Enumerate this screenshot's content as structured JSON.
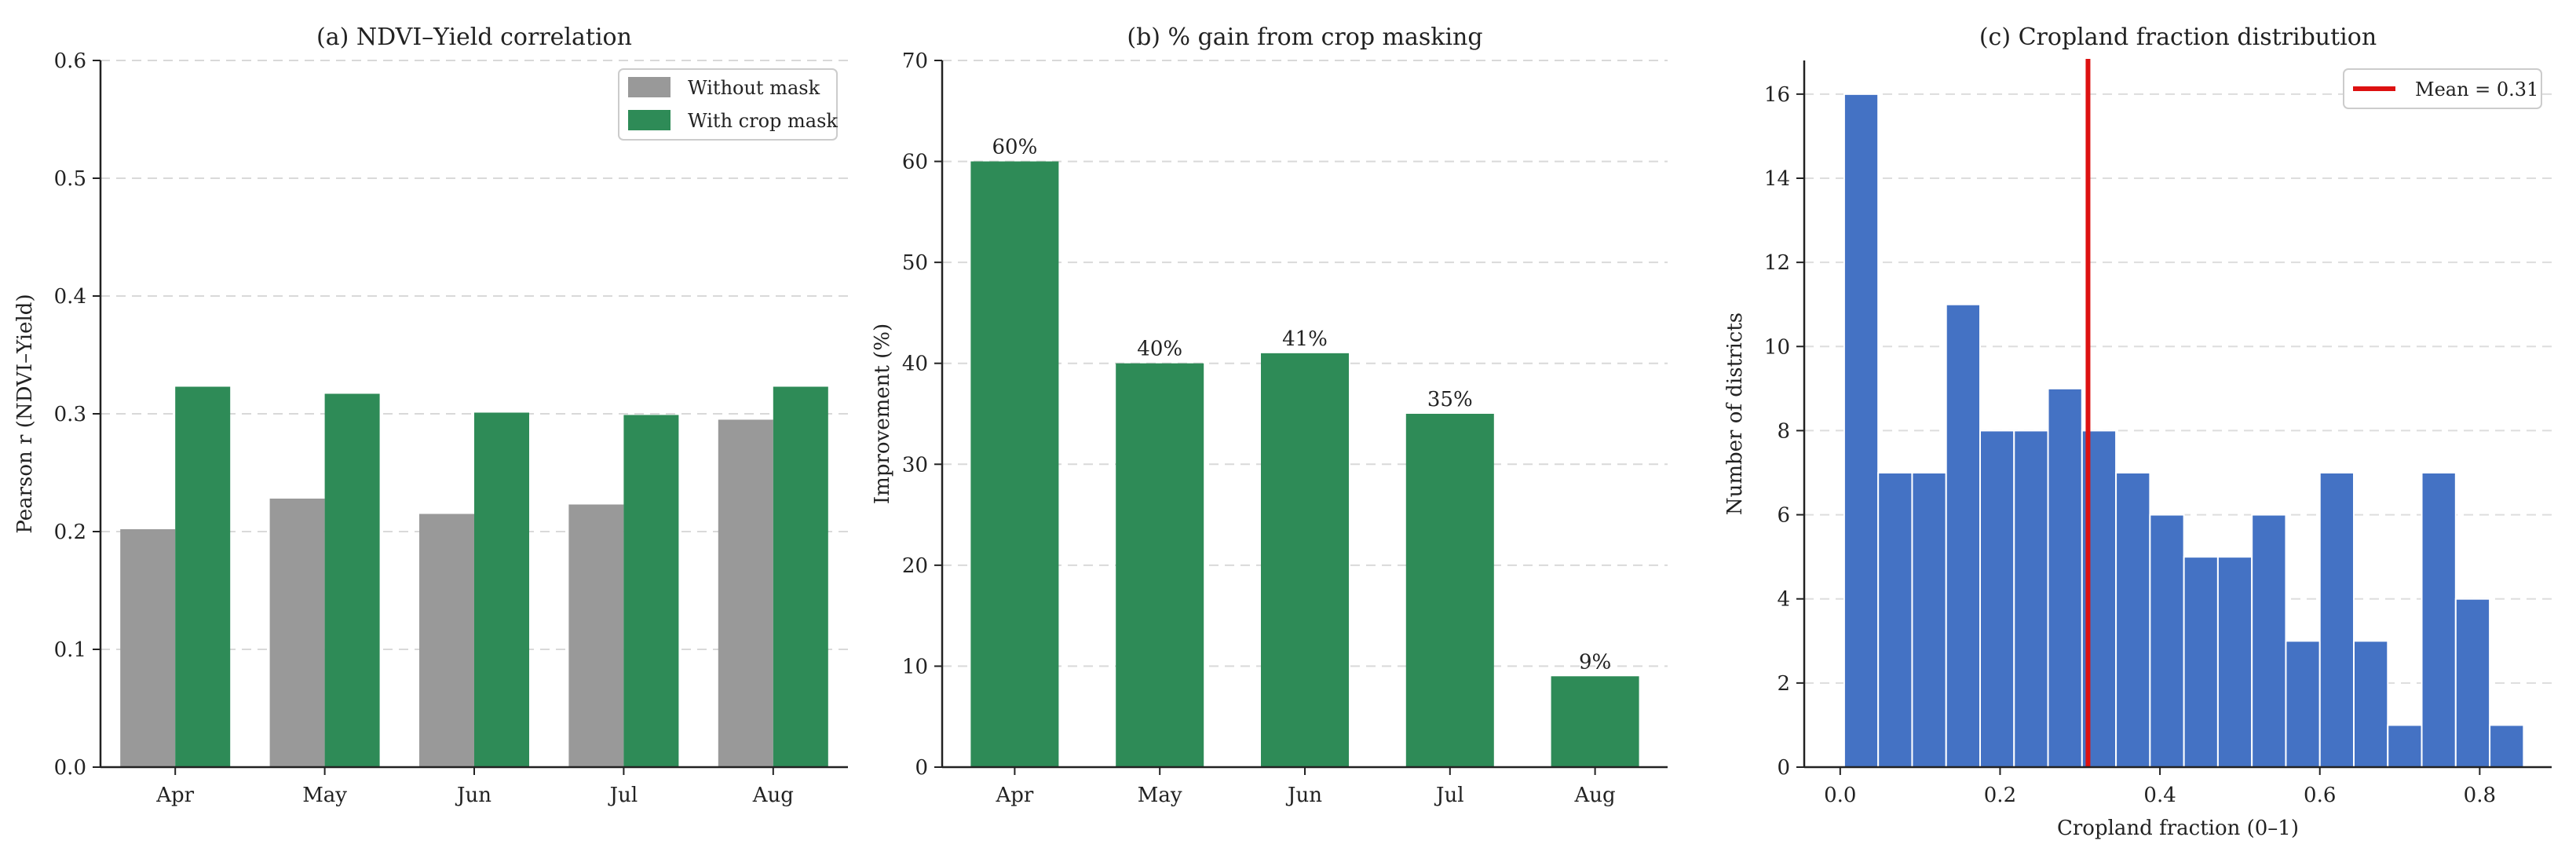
{
  "chart_data": [
    {
      "type": "bar",
      "title": "(a) NDVI–Yield correlation",
      "xlabel": "",
      "ylabel": "Pearson r (NDVI–Yield)",
      "categories": [
        "Apr",
        "May",
        "Jun",
        "Jul",
        "Aug"
      ],
      "series": [
        {
          "name": "Without mask",
          "values": [
            0.202,
            0.228,
            0.215,
            0.223,
            0.295
          ],
          "color": "#999999"
        },
        {
          "name": "With crop mask",
          "values": [
            0.323,
            0.317,
            0.301,
            0.299,
            0.323
          ],
          "color": "#2e8b57"
        }
      ],
      "ylim": [
        0,
        0.6
      ],
      "yticks": [
        0.0,
        0.1,
        0.2,
        0.3,
        0.4,
        0.5,
        0.6
      ],
      "ytick_labels": [
        "0.0",
        "0.1",
        "0.2",
        "0.3",
        "0.4",
        "0.5",
        "0.6"
      ],
      "grid": "y-dashed",
      "legend": "top-right"
    },
    {
      "type": "bar",
      "title": "(b) % gain from crop masking",
      "xlabel": "",
      "ylabel": "Improvement (%)",
      "categories": [
        "Apr",
        "May",
        "Jun",
        "Jul",
        "Aug"
      ],
      "values": [
        60,
        40,
        41,
        35,
        9
      ],
      "data_labels": [
        "60%",
        "40%",
        "41%",
        "35%",
        "9%"
      ],
      "color": "#2e8b57",
      "ylim": [
        0,
        70
      ],
      "yticks": [
        0,
        10,
        20,
        30,
        40,
        50,
        60,
        70
      ],
      "ytick_labels": [
        "0",
        "10",
        "20",
        "30",
        "40",
        "50",
        "60",
        "70"
      ],
      "grid": "y-dashed"
    },
    {
      "type": "bar",
      "subtype": "histogram",
      "title": "(c) Cropland fraction distribution",
      "xlabel": "Cropland fraction (0–1)",
      "ylabel": "Number of districts",
      "bin_start": 0.005,
      "bin_width": 0.0425,
      "counts": [
        16,
        7,
        7,
        11,
        8,
        8,
        9,
        8,
        7,
        6,
        5,
        5,
        6,
        3,
        7,
        3,
        1,
        7,
        4,
        1
      ],
      "color": "#4472c4",
      "xlim": [
        -0.045,
        0.89
      ],
      "xticks": [
        0.0,
        0.2,
        0.4,
        0.6,
        0.8
      ],
      "xtick_labels": [
        "0.0",
        "0.2",
        "0.4",
        "0.6",
        "0.8"
      ],
      "ylim": [
        0,
        16.8
      ],
      "yticks": [
        0,
        2,
        4,
        6,
        8,
        10,
        12,
        14,
        16
      ],
      "ytick_labels": [
        "0",
        "2",
        "4",
        "6",
        "8",
        "10",
        "12",
        "14",
        "16"
      ],
      "mean_line": {
        "value": 0.31,
        "label": "Mean = 0.31",
        "color": "#dd1111"
      },
      "grid": "y-dashed",
      "legend": "top-right"
    }
  ]
}
